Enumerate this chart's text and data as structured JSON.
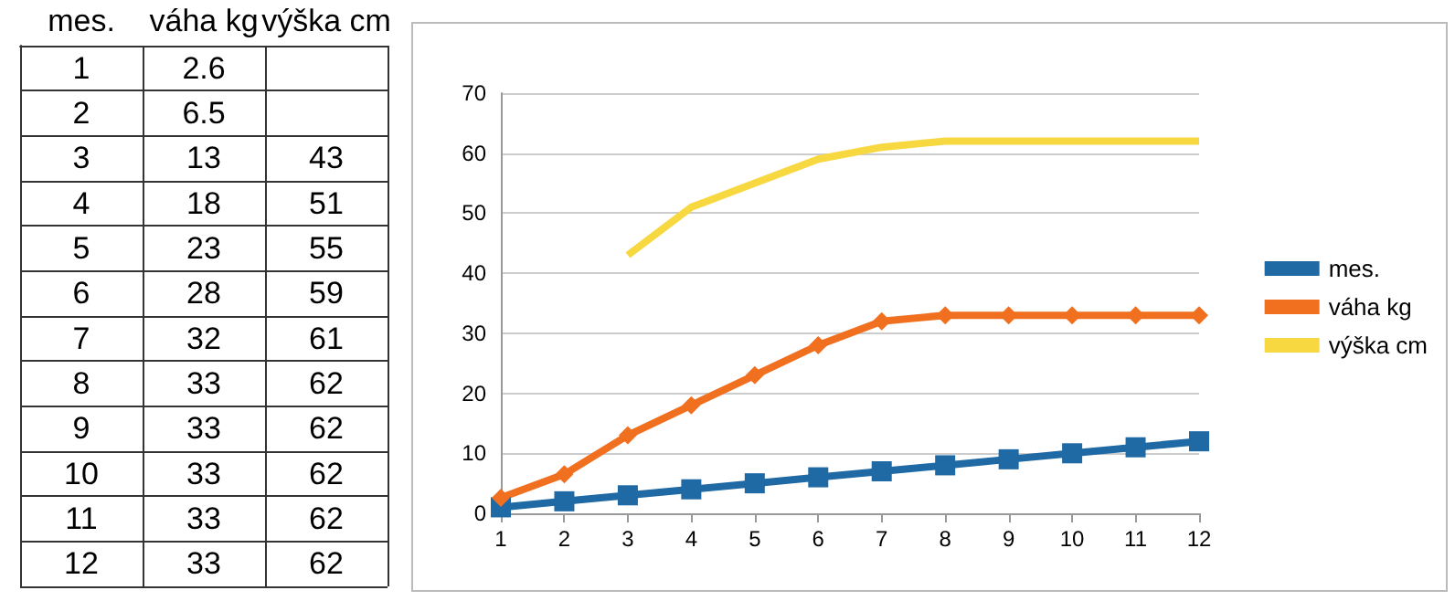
{
  "chart_data": [
    {
      "type": "heatmap",
      "categories": [
        "mes.",
        "váha kg",
        "výška cm"
      ],
      "y_categories": [
        null,
        null,
        null,
        null,
        null,
        null,
        null,
        null,
        null,
        null,
        null,
        null
      ],
      "cells": [
        [
          1,
          2.6,
          null
        ],
        [
          2,
          6.5,
          null
        ],
        [
          3,
          13,
          43
        ],
        [
          4,
          18,
          51
        ],
        [
          5,
          23,
          55
        ],
        [
          6,
          28,
          59
        ],
        [
          7,
          32,
          61
        ],
        [
          8,
          33,
          62
        ],
        [
          9,
          33,
          62
        ],
        [
          10,
          33,
          62
        ],
        [
          11,
          33,
          62
        ],
        [
          12,
          33,
          62
        ]
      ],
      "data_labels": true
    },
    {
      "type": "line",
      "categories": [
        "1",
        "2",
        "3",
        "4",
        "5",
        "6",
        "7",
        "8",
        "9",
        "10",
        "11",
        "12"
      ],
      "series": [
        {
          "name": "mes.",
          "color": "#1f6aa5",
          "marker": "square",
          "values": [
            1,
            2,
            3,
            4,
            5,
            6,
            7,
            8,
            9,
            10,
            11,
            12
          ]
        },
        {
          "name": "váha kg",
          "color": "#f07020",
          "marker": "diamond",
          "values": [
            2.6,
            6.5,
            13,
            18,
            23,
            28,
            32,
            33,
            33,
            33,
            33,
            33
          ]
        },
        {
          "name": "výška cm",
          "color": "#f8d840",
          "marker": "none",
          "values": [
            null,
            null,
            43,
            51,
            55,
            59,
            61,
            62,
            62,
            62,
            62,
            62
          ]
        }
      ],
      "ylim": [
        0,
        70
      ],
      "yticks": [
        0,
        10,
        20,
        30,
        40,
        50,
        60,
        70
      ],
      "grid": "y",
      "legend": "right"
    }
  ]
}
